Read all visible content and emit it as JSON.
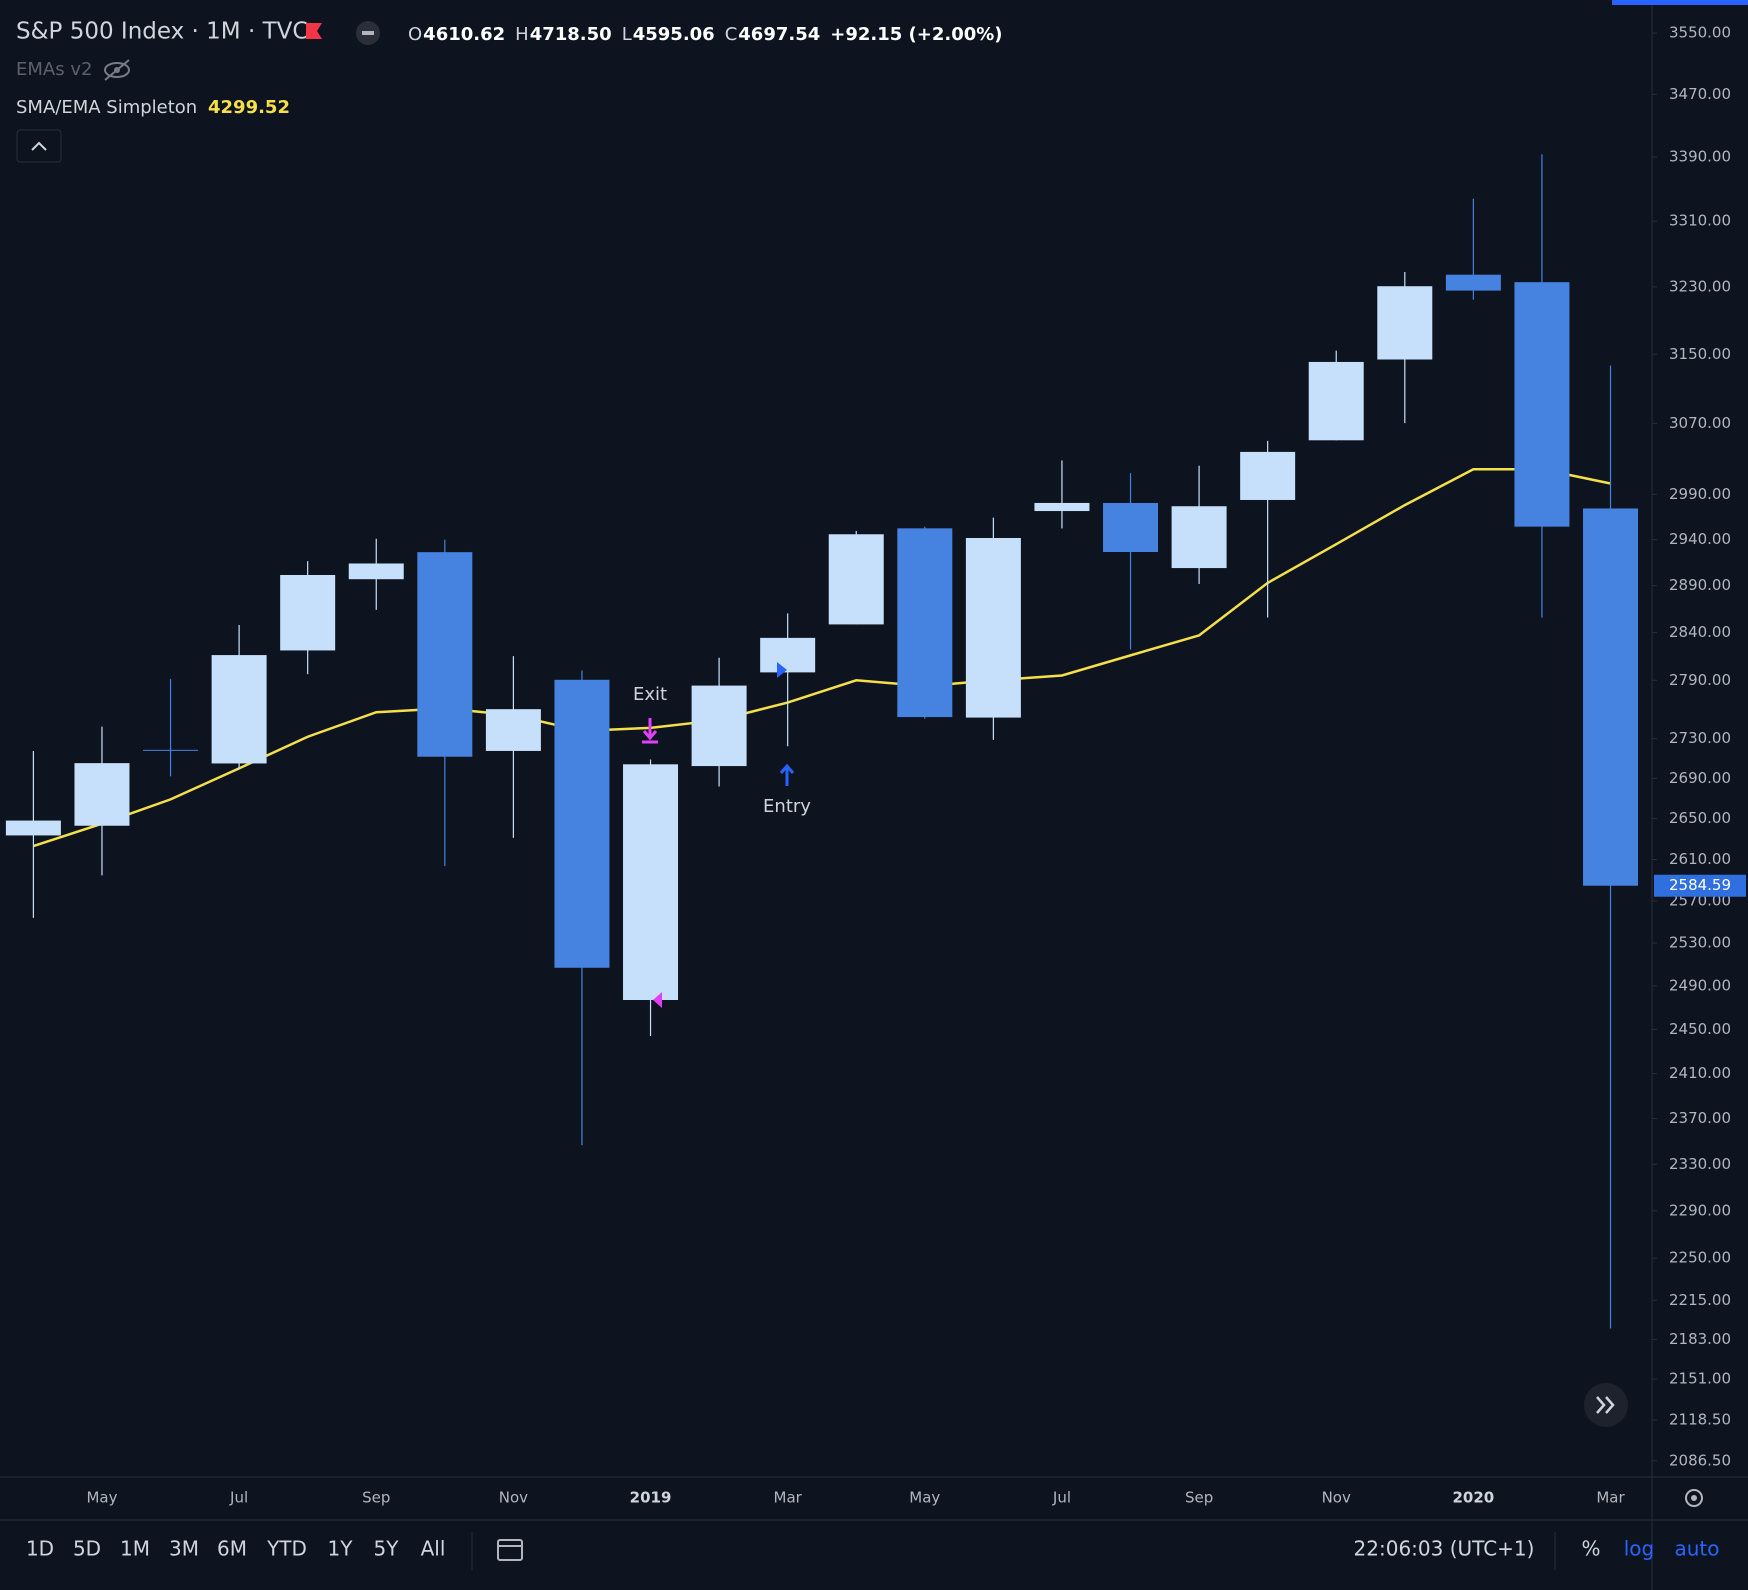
{
  "chart_data": {
    "type": "candlestick",
    "title": "S&P 500 Index · 1M · TVC",
    "ohlc_legend": [
      {
        "key": "O",
        "value": "4610.62"
      },
      {
        "key": "H",
        "value": "4718.50"
      },
      {
        "key": "L",
        "value": "4595.06"
      },
      {
        "key": "C",
        "value": "4697.54"
      }
    ],
    "change": "+92.15 (+2.00%)",
    "hidden_indicators": [
      "EMAs v2"
    ],
    "categories": [
      null,
      "May",
      null,
      "Jul",
      null,
      "Sep",
      null,
      "Nov",
      null,
      "2019",
      null,
      "Mar",
      null,
      "May",
      null,
      "Jul",
      null,
      "Sep",
      null,
      "Nov",
      null,
      "2020",
      null,
      "Mar"
    ],
    "open": [
      2633.45,
      2642.96,
      2718.7,
      2704.95,
      2821.17,
      2896.96,
      2926.29,
      2717.58,
      2790.5,
      2476.96,
      2702.32,
      2798.22,
      2848.63,
      2952.33,
      2751.53,
      2971.41,
      2980.32,
      2909.01,
      2983.69,
      3050.72,
      3143.85,
      3244.67,
      3235.66,
      2974.28
    ],
    "high": [
      2717.49,
      2742.24,
      2791.47,
      2848.03,
      2916.5,
      2940.91,
      2939.86,
      2815.15,
      2800.18,
      2708.95,
      2813.49,
      2860.31,
      2949.52,
      2954.13,
      2964.15,
      3027.98,
      3013.59,
      3021.99,
      3050.1,
      3154.26,
      3247.93,
      3337.77,
      3393.52,
      3136.72
    ],
    "low": [
      2553.8,
      2594.62,
      2691.99,
      2698.95,
      2796.34,
      2864.12,
      2603.54,
      2631.09,
      2346.58,
      2443.96,
      2681.83,
      2722.27,
      2848.63,
      2750.52,
      2728.81,
      2952.22,
      2822.12,
      2891.85,
      2855.94,
      3050.72,
      3070.33,
      3214.64,
      2855.84,
      2191.86
    ],
    "close": [
      2648.05,
      2705.27,
      2718.37,
      2816.29,
      2901.52,
      2913.98,
      2711.74,
      2760.17,
      2506.85,
      2704.1,
      2784.49,
      2834.4,
      2945.83,
      2752.06,
      2941.76,
      2980.38,
      2926.46,
      2976.74,
      3037.56,
      3140.98,
      3230.78,
      3225.52,
      2954.22,
      2584.59
    ],
    "up_color": "#c6e0fb",
    "down_color": "#4682e0",
    "series": [
      {
        "name": "SMA/EMA Simpleton",
        "color": "#f5e04a",
        "legend_value": 4299.52,
        "values": [
          2623,
          2645,
          2669,
          2700,
          2732,
          2757,
          2761,
          2754,
          2738,
          2741,
          2749,
          2767,
          2790,
          2784,
          2790,
          2795,
          2816,
          2837,
          2893,
          2935,
          2978,
          3018,
          3018,
          3002
        ]
      }
    ],
    "annotations": [
      {
        "text": "Exit"
      },
      {
        "text": "Entry"
      }
    ],
    "log_scale": true,
    "grid": false,
    "ylim": [
      2074,
      3594
    ],
    "yticks": [
      {
        "value": 3550,
        "label": "3550.00"
      },
      {
        "value": 3470,
        "label": "3470.00"
      },
      {
        "value": 3390,
        "label": "3390.00"
      },
      {
        "value": 3310,
        "label": "3310.00"
      },
      {
        "value": 3230,
        "label": "3230.00"
      },
      {
        "value": 3150,
        "label": "3150.00"
      },
      {
        "value": 3070,
        "label": "3070.00"
      },
      {
        "value": 2990,
        "label": "2990.00"
      },
      {
        "value": 2940,
        "label": "2940.00"
      },
      {
        "value": 2890,
        "label": "2890.00"
      },
      {
        "value": 2840,
        "label": "2840.00"
      },
      {
        "value": 2790,
        "label": "2790.00"
      },
      {
        "value": 2730,
        "label": "2730.00"
      },
      {
        "value": 2690,
        "label": "2690.00"
      },
      {
        "value": 2650,
        "label": "2650.00"
      },
      {
        "value": 2610,
        "label": "2610.00"
      },
      {
        "value": 2570,
        "label": "2570.00"
      },
      {
        "value": 2530,
        "label": "2530.00"
      },
      {
        "value": 2490,
        "label": "2490.00"
      },
      {
        "value": 2450,
        "label": "2450.00"
      },
      {
        "value": 2410,
        "label": "2410.00"
      },
      {
        "value": 2370,
        "label": "2370.00"
      },
      {
        "value": 2330,
        "label": "2330.00"
      },
      {
        "value": 2290,
        "label": "2290.00"
      },
      {
        "value": 2250,
        "label": "2250.00"
      },
      {
        "value": 2215,
        "label": "2215.00"
      },
      {
        "value": 2183,
        "label": "2183.00"
      },
      {
        "value": 2151,
        "label": "2151.00"
      },
      {
        "value": 2118.5,
        "label": "2118.50"
      },
      {
        "value": 2086.5,
        "label": "2086.50"
      }
    ],
    "last_price_color": "#2f6fe0",
    "range_buttons": [
      "1D",
      "5D",
      "1M",
      "3M",
      "6M",
      "YTD",
      "1Y",
      "5Y",
      "All"
    ],
    "clock": "22:06:03 (UTC+1)",
    "scale_options": [
      "%",
      "log",
      "auto"
    ]
  }
}
